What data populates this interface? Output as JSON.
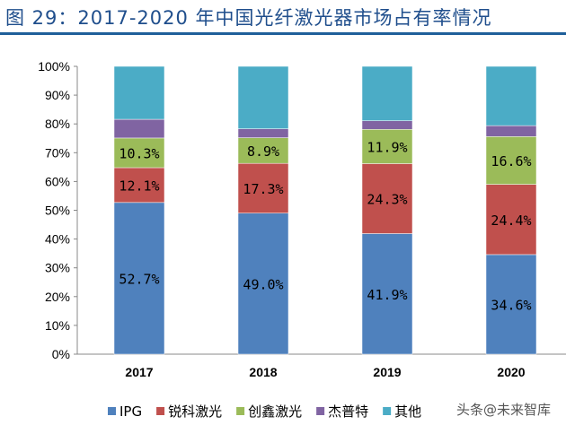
{
  "title": "图 29：2017-2020 年中国光纤激光器市场占有率情况",
  "watermark": "头条@未来智库",
  "chart_data": {
    "type": "bar",
    "stacked": true,
    "categories": [
      "2017",
      "2018",
      "2019",
      "2020"
    ],
    "series": [
      {
        "name": "IPG",
        "color": "#4F81BD",
        "values": [
          52.7,
          49.0,
          41.9,
          34.6
        ],
        "labels": [
          "52.7%",
          "49.0%",
          "41.9%",
          "34.6%"
        ]
      },
      {
        "name": "锐科激光",
        "color": "#C0504D",
        "values": [
          12.1,
          17.3,
          24.3,
          24.4
        ],
        "labels": [
          "12.1%",
          "17.3%",
          "24.3%",
          "24.4%"
        ]
      },
      {
        "name": "创鑫激光",
        "color": "#9BBB59",
        "values": [
          10.3,
          8.9,
          11.9,
          16.6
        ],
        "labels": [
          "10.3%",
          "8.9%",
          "11.9%",
          "16.6%"
        ]
      },
      {
        "name": "杰普特",
        "color": "#8064A2",
        "values": [
          6.5,
          3.1,
          3.0,
          3.8
        ]
      },
      {
        "name": "其他",
        "color": "#4BACC6",
        "values": [
          18.4,
          21.7,
          18.9,
          20.6
        ]
      }
    ],
    "ylim": [
      0,
      100
    ],
    "yticks": [
      "0%",
      "10%",
      "20%",
      "30%",
      "40%",
      "50%",
      "60%",
      "70%",
      "80%",
      "90%",
      "100%"
    ],
    "grid": false,
    "legend": "bottom"
  }
}
